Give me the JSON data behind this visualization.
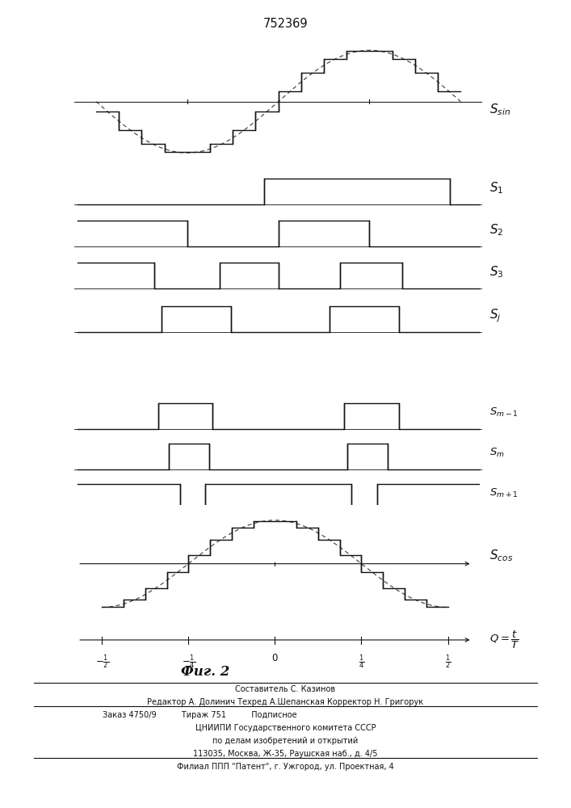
{
  "title": "752369",
  "fig_label": "Фиг. 2",
  "background_color": "#ffffff",
  "line_color": "#111111",
  "text_color": "#111111",
  "footer_lines": [
    "Составитель С. Казинов",
    "Редактор А. Долинич Техред А.Шепанская Корректор Н. Григорук",
    "Заказ 4750/9          Тираж 751          Подписное",
    "ЦНИИПИ Государственного комитета СССР",
    "по делам изобретений и открытий",
    "113035, Москва, Ж-35, Раушская наб., д. 4/5",
    "Филиал ППП \"Патент\", г. Ужгород, ул. Проектная, 4"
  ],
  "num_steps": 16,
  "xlim": [
    -0.55,
    0.55
  ],
  "sin_xlim": [
    -0.55,
    0.55
  ],
  "cos_xlim": [
    -0.55,
    0.55
  ]
}
